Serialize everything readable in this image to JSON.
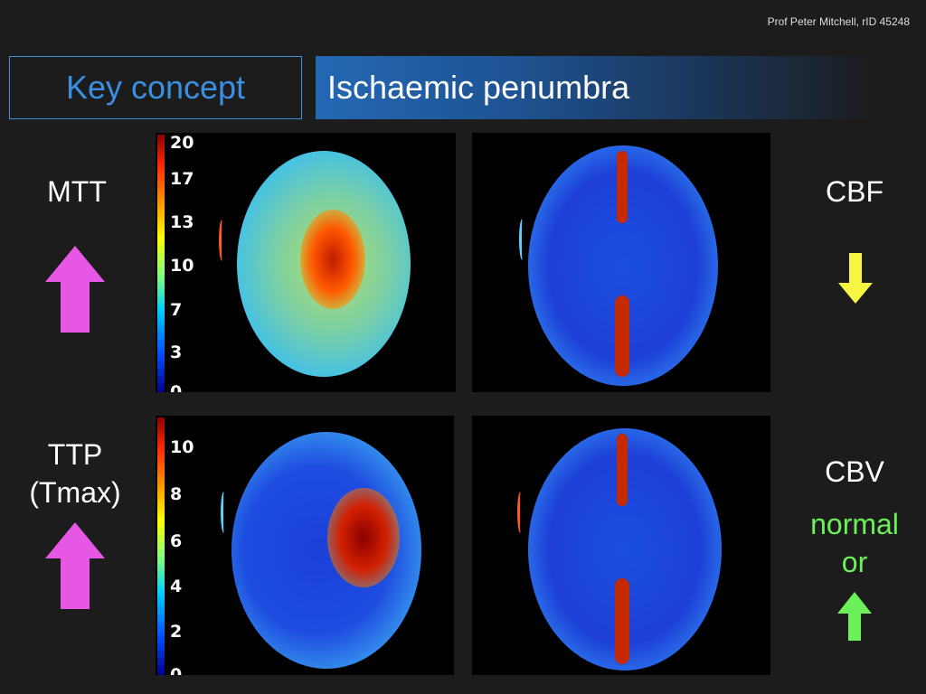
{
  "credit": "Prof Peter Mitchell, rID 45248",
  "header": {
    "key_label": "Key concept",
    "title": "Ischaemic penumbra"
  },
  "labels": {
    "mtt": "MTT",
    "ttp_line1": "TTP",
    "ttp_line2": "(Tmax)",
    "cbf": "CBF",
    "cbv": "CBV",
    "normal_line1": "normal",
    "normal_line2": "or"
  },
  "scales": {
    "mtt": [
      "20",
      "17",
      "13",
      "10",
      "7",
      "3",
      "0"
    ],
    "ttp": [
      "10",
      "8",
      "6",
      "4",
      "2",
      "0"
    ]
  },
  "colors": {
    "up_arrow": "#e657e6",
    "down_arrow": "#f5f542",
    "green_arrow": "#6cf05a",
    "key_text": "#3b8fe0"
  }
}
